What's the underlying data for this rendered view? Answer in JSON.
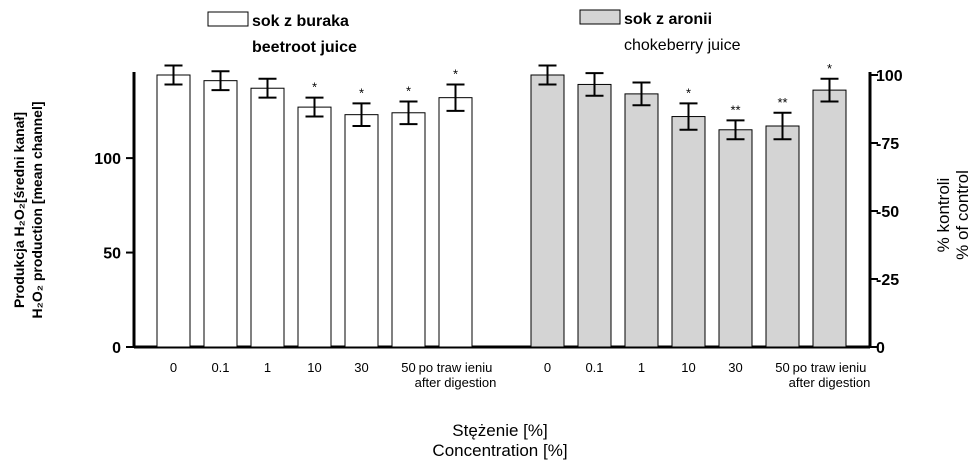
{
  "chart_data": {
    "type": "bar",
    "title": "",
    "legend": [
      {
        "name_pl": "sok z buraka",
        "name_en": "beetroot juice",
        "fill": "#ffffff"
      },
      {
        "name_pl": "sok z aronii",
        "name_en": "chokeberry juice",
        "fill": "#d4d4d4"
      }
    ],
    "ylabel_left_line1": "Produkcja H₂O₂[średni kanał]",
    "ylabel_left_line2": "H₂O₂ production [mean channel]",
    "ylabel_right_line1": "% kontroli",
    "ylabel_right_line2": "% of control",
    "xlabel_line1": "Stężenie [%]",
    "xlabel_line2": "Concentration [%]",
    "ylim_left": [
      0,
      144
    ],
    "ylim_right": [
      0,
      100
    ],
    "yticks_left": [
      0,
      50,
      100
    ],
    "yticks_right": [
      0,
      25,
      50,
      75,
      100
    ],
    "yticks_right_labels": [
      "0",
      "-25",
      "-50",
      "-75",
      "100"
    ],
    "categories": [
      "0",
      "0.1",
      "1",
      "10",
      "30",
      "50",
      "po traw ieniu\nafter digestion"
    ],
    "series": [
      {
        "name": "sok z buraka",
        "values": [
          144,
          141,
          137,
          127,
          123,
          124,
          132
        ],
        "errors": [
          5,
          5,
          5,
          5,
          6,
          6,
          7
        ],
        "significance": [
          "",
          "",
          "",
          "*",
          "*",
          "*",
          "*"
        ]
      },
      {
        "name": "sok z aronii",
        "values": [
          144,
          139,
          134,
          122,
          115,
          117,
          136
        ],
        "errors": [
          5,
          6,
          6,
          7,
          5,
          7,
          6
        ],
        "significance": [
          "",
          "",
          "",
          "*",
          "**",
          "**",
          "*"
        ]
      }
    ]
  }
}
